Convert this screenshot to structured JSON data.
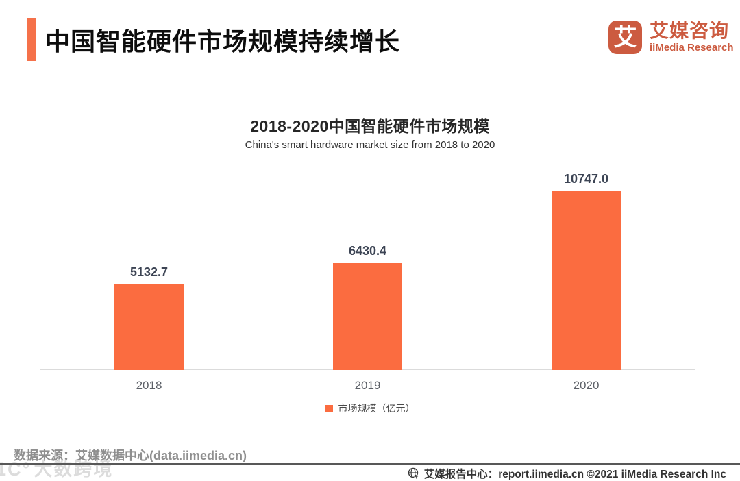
{
  "header": {
    "title": "中国智能硬件市场规模持续增长",
    "logo": {
      "glyph": "艾",
      "name_cn": "艾媒咨询",
      "name_en": "iiMedia Research"
    }
  },
  "chart_data": {
    "type": "bar",
    "title": "2018-2020中国智能硬件市场规模",
    "subtitle": "China's smart hardware market size from 2018 to 2020",
    "categories": [
      "2018",
      "2019",
      "2020"
    ],
    "series": [
      {
        "name": "市场规模（亿元）",
        "values": [
          5132.7,
          6430.4,
          10747.0
        ]
      }
    ],
    "value_labels": [
      "5132.7",
      "6430.4",
      "10747.0"
    ],
    "unit": "亿元",
    "bar_color": "#FB6C40",
    "axis_line_color": "#DBDBDB",
    "ylim": [
      0,
      10747
    ],
    "grid": false,
    "legend_position": "bottom-center"
  },
  "footer": {
    "datasource": "数据来源：艾媒数据中心(data.iimedia.cn)",
    "report_center": "艾媒报告中心：report.iimedia.cn ©2021  iiMedia Research Inc"
  },
  "watermark": {
    "prefix": "1C°",
    "text": "大数跨境"
  },
  "colors": {
    "accent": "#F5714A",
    "bar": "#FB6C40",
    "logo": "#CC5B40",
    "value_label": "#3C4454",
    "category_label": "#5B5F66"
  }
}
